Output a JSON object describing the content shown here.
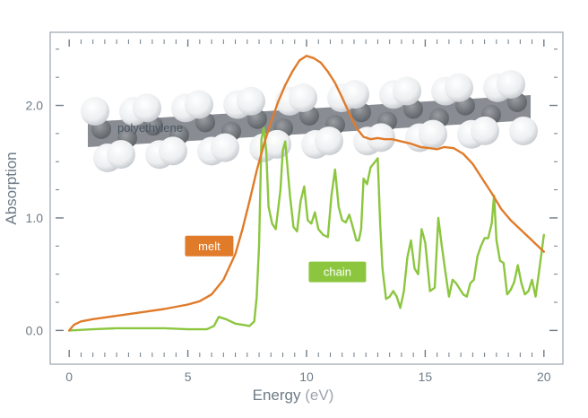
{
  "chart_data": {
    "type": "line",
    "title": "",
    "xlabel": "Energy",
    "xlabel_unit": "(eV)",
    "ylabel": "Absorption",
    "xlim": [
      -0.8,
      20.8
    ],
    "ylim": [
      -0.3,
      2.65
    ],
    "xticks": [
      0,
      5,
      10,
      15,
      20
    ],
    "xtick_labels": [
      "0",
      "5",
      "10",
      "15",
      "20"
    ],
    "yticks": [
      0.0,
      1.0,
      2.0
    ],
    "ytick_labels": [
      "0.0",
      "1.0",
      "2.0"
    ],
    "grid": false,
    "inset_label": "polyethylene",
    "series": [
      {
        "name": "melt",
        "color": "#e07b2a",
        "label_at": [
          5.9,
          0.75
        ],
        "x": [
          0.0,
          0.2,
          0.5,
          1,
          2,
          3,
          4,
          5,
          5.5,
          6,
          6.5,
          7,
          7.3,
          7.6,
          7.9,
          8.2,
          8.5,
          8.8,
          9.1,
          9.4,
          9.7,
          10.0,
          10.3,
          10.6,
          10.9,
          11.2,
          11.5,
          11.8,
          12.1,
          12.4,
          12.7,
          13.0,
          13.3,
          13.6,
          14.0,
          14.4,
          14.8,
          15.2,
          15.5,
          15.8,
          16.2,
          16.6,
          17.0,
          17.4,
          17.8,
          18.2,
          18.6,
          19.0,
          19.4,
          19.8,
          20.0
        ],
        "y": [
          0.0,
          0.05,
          0.08,
          0.1,
          0.13,
          0.16,
          0.19,
          0.23,
          0.26,
          0.32,
          0.45,
          0.68,
          0.9,
          1.15,
          1.42,
          1.65,
          1.85,
          2.03,
          2.18,
          2.3,
          2.4,
          2.44,
          2.42,
          2.38,
          2.3,
          2.2,
          2.07,
          1.93,
          1.8,
          1.72,
          1.7,
          1.71,
          1.7,
          1.7,
          1.68,
          1.66,
          1.63,
          1.62,
          1.61,
          1.63,
          1.62,
          1.57,
          1.48,
          1.35,
          1.22,
          1.08,
          0.98,
          0.9,
          0.82,
          0.74,
          0.7
        ]
      },
      {
        "name": "chain",
        "color": "#8cc63f",
        "label_at": [
          11.3,
          0.52
        ],
        "x": [
          0.0,
          1,
          2,
          3,
          4,
          5,
          5.8,
          6.1,
          6.3,
          6.6,
          7.0,
          7.3,
          7.6,
          7.8,
          7.9,
          8.0,
          8.05,
          8.1,
          8.2,
          8.3,
          8.4,
          8.55,
          8.7,
          8.9,
          9.0,
          9.1,
          9.3,
          9.45,
          9.6,
          9.75,
          9.9,
          10.05,
          10.2,
          10.35,
          10.5,
          10.7,
          10.9,
          11.05,
          11.2,
          11.35,
          11.5,
          11.65,
          11.8,
          11.95,
          12.1,
          12.2,
          12.3,
          12.4,
          12.55,
          12.7,
          12.85,
          13.0,
          13.1,
          13.2,
          13.35,
          13.5,
          13.65,
          13.8,
          13.95,
          14.1,
          14.25,
          14.4,
          14.55,
          14.7,
          14.85,
          15.0,
          15.2,
          15.4,
          15.55,
          15.7,
          15.85,
          16.0,
          16.15,
          16.3,
          16.45,
          16.6,
          16.75,
          16.9,
          17.05,
          17.2,
          17.35,
          17.5,
          17.65,
          17.8,
          17.9,
          18.0,
          18.15,
          18.3,
          18.45,
          18.6,
          18.75,
          18.9,
          19.05,
          19.2,
          19.35,
          19.5,
          19.65,
          19.8,
          20.0
        ],
        "y": [
          0.0,
          0.01,
          0.02,
          0.02,
          0.02,
          0.01,
          0.01,
          0.04,
          0.12,
          0.1,
          0.06,
          0.05,
          0.04,
          0.08,
          0.3,
          0.75,
          1.25,
          1.7,
          1.8,
          1.6,
          1.1,
          0.95,
          0.9,
          1.25,
          1.6,
          1.68,
          1.2,
          0.92,
          0.88,
          1.15,
          1.28,
          0.98,
          0.95,
          1.05,
          0.9,
          0.85,
          0.83,
          1.2,
          1.43,
          1.1,
          0.98,
          0.96,
          1.03,
          0.92,
          0.8,
          0.8,
          0.9,
          1.35,
          1.3,
          1.45,
          1.49,
          1.53,
          0.95,
          0.55,
          0.28,
          0.3,
          0.35,
          0.3,
          0.2,
          0.35,
          0.65,
          0.8,
          0.55,
          0.5,
          0.9,
          0.78,
          0.35,
          0.38,
          1.0,
          0.75,
          0.52,
          0.3,
          0.45,
          0.42,
          0.37,
          0.32,
          0.3,
          0.42,
          0.45,
          0.66,
          0.75,
          0.82,
          0.82,
          0.95,
          1.2,
          0.8,
          0.62,
          0.6,
          0.32,
          0.36,
          0.43,
          0.58,
          0.42,
          0.32,
          0.35,
          0.45,
          0.3,
          0.53,
          0.85
        ]
      }
    ]
  }
}
